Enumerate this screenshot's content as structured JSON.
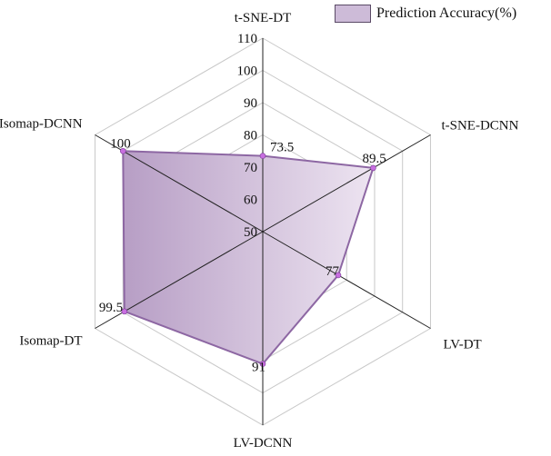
{
  "chart_data": {
    "type": "radar",
    "categories": [
      "t-SNE-DT",
      "t-SNE-DCNN",
      "LV-DT",
      "LV-DCNN",
      "Isomap-DT",
      "Isomap-DCNN"
    ],
    "series": [
      {
        "name": "Prediction Accuracy(%)",
        "values": [
          73.5,
          89.5,
          77,
          91,
          99.5,
          100
        ]
      }
    ],
    "value_labels": [
      "73.5",
      "89.5",
      "77",
      "91",
      "99.5",
      "100"
    ],
    "radial_ticks": [
      50,
      60,
      70,
      80,
      90,
      100,
      110
    ],
    "rlim": [
      50,
      110
    ],
    "grid": true,
    "legend_position": "top-right",
    "colors": {
      "fill_light": "#ede4f1",
      "fill_dark": "#b79ec5",
      "stroke": "#8d67a3",
      "marker": "#c86ee0",
      "grid": "#c8c8c8",
      "axis": "#222222"
    }
  }
}
